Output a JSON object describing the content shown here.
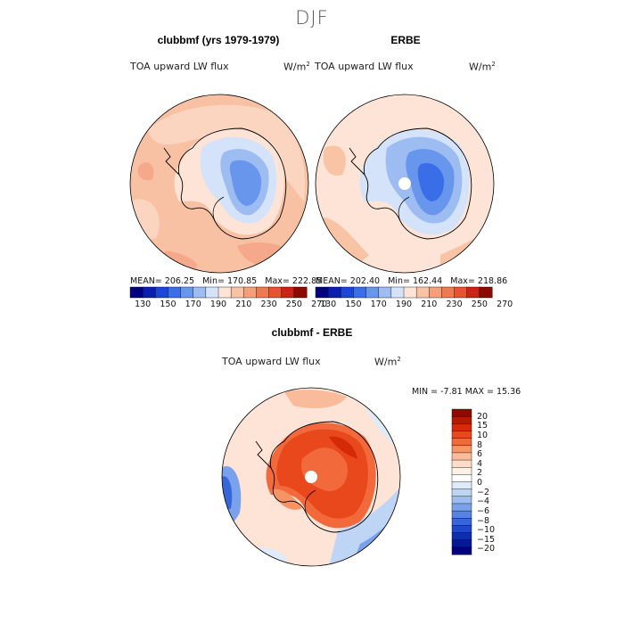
{
  "figure": {
    "title": "DJF"
  },
  "panels": {
    "left": {
      "title": "clubbmf (yrs 1979-1979)",
      "variable": "TOA upward LW flux",
      "units_base": "W/m",
      "units_exp": "2",
      "stats": {
        "mean_label": "MEAN=",
        "mean": "206.25",
        "min_label": "Min=",
        "min": "170.85",
        "max_label": "Max=",
        "max": "222.85"
      }
    },
    "right": {
      "title": "ERBE",
      "variable": "TOA upward LW flux",
      "units_base": "W/m",
      "units_exp": "2",
      "stats": {
        "mean_label": "MEAN=",
        "mean": "202.40",
        "min_label": "Min=",
        "min": "162.44",
        "max_label": "Max=",
        "max": "218.86"
      }
    },
    "diff": {
      "title": "clubbmf - ERBE",
      "variable": "TOA upward LW flux",
      "units_base": "W/m",
      "units_exp": "2",
      "stats": {
        "min_label": "MIN =",
        "min": "-7.81",
        "max_label": "MAX =",
        "max": "15.36"
      }
    }
  },
  "colorbars": {
    "abs": {
      "colors": [
        "#000080",
        "#0a1fb0",
        "#1b46d6",
        "#3a6ee8",
        "#6896ec",
        "#9cbcf2",
        "#d4e3fa",
        "#fde4d6",
        "#f9c4a6",
        "#f5a07a",
        "#ef7a52",
        "#e55330",
        "#cb2414",
        "#8c0a00"
      ],
      "tick_labels": [
        "130",
        "150",
        "170",
        "190",
        "210",
        "230",
        "250",
        "270"
      ]
    },
    "diff": {
      "colors_top_to_bottom": [
        "#8c0a00",
        "#b31a00",
        "#d42a08",
        "#e8481c",
        "#f26a3c",
        "#f69466",
        "#f9bb99",
        "#fcdcc6",
        "#fdf1e6",
        "#ffffff",
        "#deebfb",
        "#bfd5f6",
        "#9dbdf2",
        "#7aa2ec",
        "#5584e4",
        "#3666da",
        "#1e48cc",
        "#0c2fb0",
        "#041a94",
        "#000080"
      ],
      "tick_labels_top_to_bottom": [
        "20",
        "15",
        "10",
        "8",
        "6",
        "4",
        "2",
        "0",
        "−2",
        "−4",
        "−6",
        "−8",
        "−10",
        "−15",
        "−20"
      ]
    }
  }
}
